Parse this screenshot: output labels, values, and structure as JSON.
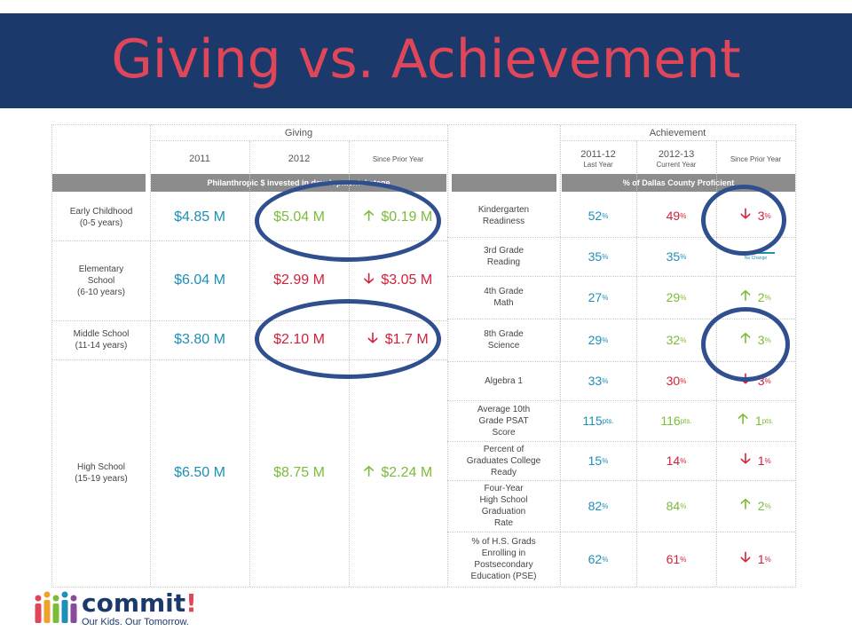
{
  "slide": {
    "title": "Giving vs. Achievement"
  },
  "colors": {
    "banner": "#1b3a6b",
    "title": "#e0465a",
    "increase": "#7dbb3a",
    "decrease": "#d3213b",
    "neutral": "#1f8fb7",
    "ring": "#2f4f8f"
  },
  "giving": {
    "header": "Giving",
    "col_2011": "2011",
    "col_2012": "2012",
    "col_change": "Since Prior Year",
    "subheader": "Philanthropic $ invested in developmental stage"
  },
  "achievement": {
    "header": "Achievement",
    "col_last": "2011-12",
    "col_last_sub": "Last Year",
    "col_current": "2012-13",
    "col_current_sub": "Current Year",
    "col_change": "Since Prior Year",
    "subheader": "% of Dallas County Proficient"
  },
  "stages": [
    {
      "label": "Early Childhood",
      "sub": "(0-5 years)",
      "y2011": "$4.85 M",
      "y2012": "$5.04 M",
      "change": "$0.19 M",
      "dir": "up"
    },
    {
      "label": "Elementary",
      "label2": "School",
      "sub": "(6-10 years)",
      "y2011": "$6.04 M",
      "y2012": "$2.99 M",
      "change": "$3.05 M",
      "dir": "down"
    },
    {
      "label": "Middle School",
      "sub": "(11-14 years)",
      "y2011": "$3.80 M",
      "y2012": "$2.10 M",
      "change": "$1.7 M",
      "dir": "down"
    },
    {
      "label": "High School",
      "sub": "(15-19 years)",
      "y2011": "$6.50 M",
      "y2012": "$8.75 M",
      "change": "$2.24 M",
      "dir": "up"
    }
  ],
  "measures": [
    {
      "l1": "Kindergarten",
      "l2": "Readiness",
      "l3": "",
      "l4": "",
      "last": "52",
      "cur": "49",
      "unit": "%",
      "change": "3",
      "dir": "down"
    },
    {
      "l1": "3rd Grade",
      "l2": "Reading",
      "l3": "",
      "l4": "",
      "last": "35",
      "cur": "35",
      "unit": "%",
      "change": "",
      "dir": "none",
      "note": "No Change"
    },
    {
      "l1": "4th Grade",
      "l2": "Math",
      "l3": "",
      "l4": "",
      "last": "27",
      "cur": "29",
      "unit": "%",
      "change": "2",
      "dir": "up"
    },
    {
      "l1": "8th Grade",
      "l2": "Science",
      "l3": "",
      "l4": "",
      "last": "29",
      "cur": "32",
      "unit": "%",
      "change": "3",
      "dir": "up"
    },
    {
      "l1": "Algebra 1",
      "l2": "",
      "l3": "",
      "l4": "",
      "last": "33",
      "cur": "30",
      "unit": "%",
      "change": "3",
      "dir": "down"
    },
    {
      "l1": "Average 10th",
      "l2": "Grade PSAT",
      "l3": "Score",
      "l4": "",
      "last": "115",
      "cur": "116",
      "unit": "pts.",
      "change": "1",
      "dir": "up"
    },
    {
      "l1": "Percent of",
      "l2": "Graduates College",
      "l3": "Ready",
      "l4": "",
      "last": "15",
      "cur": "14",
      "unit": "%",
      "change": "1",
      "dir": "down"
    },
    {
      "l1": "Four-Year",
      "l2": "High School",
      "l3": "Graduation",
      "l4": "Rate",
      "last": "82",
      "cur": "84",
      "unit": "%",
      "change": "2",
      "dir": "up"
    },
    {
      "l1": "% of H.S. Grads",
      "l2": "Enrolling in",
      "l3": "Postsecondary",
      "l4": "Education (PSE)",
      "last": "62",
      "cur": "61",
      "unit": "%",
      "change": "1",
      "dir": "down"
    }
  ],
  "symbols": {
    "up": "🡡",
    "down": "🡣"
  },
  "logo": {
    "name": "commit",
    "bang": "!",
    "tagline": "Our Kids. Our Tomorrow."
  }
}
